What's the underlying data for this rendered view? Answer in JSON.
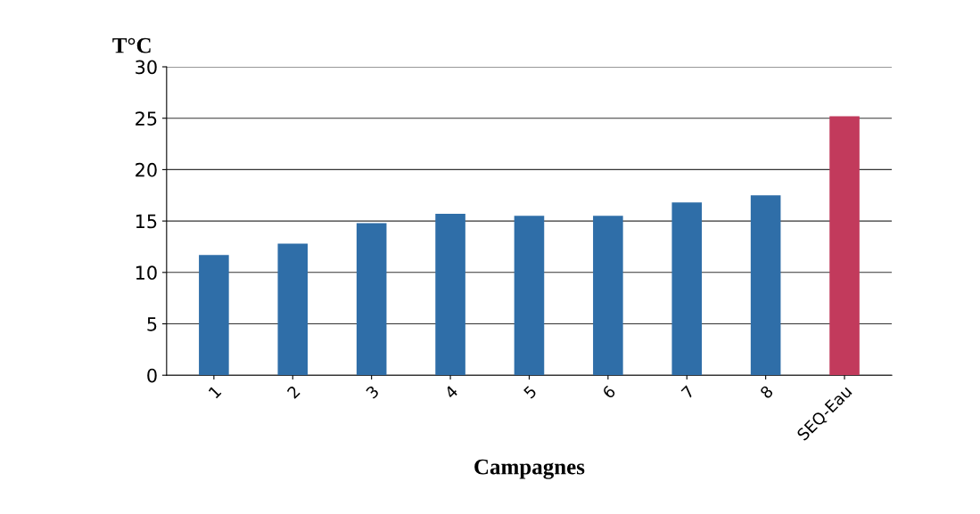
{
  "chart_data": {
    "type": "bar",
    "categories": [
      "1",
      "2",
      "3",
      "4",
      "5",
      "6",
      "7",
      "8",
      "SEQ-Eau"
    ],
    "values": [
      11.7,
      12.8,
      14.8,
      15.7,
      15.5,
      15.5,
      16.8,
      17.5,
      25.2
    ],
    "colors": [
      "#2f6ea8",
      "#2f6ea8",
      "#2f6ea8",
      "#2f6ea8",
      "#2f6ea8",
      "#2f6ea8",
      "#2f6ea8",
      "#2f6ea8",
      "#c23a5c"
    ],
    "ylabel": "T°C",
    "xlabel": "Campagnes",
    "ylim": [
      0,
      30
    ],
    "yticks": [
      0,
      5,
      10,
      15,
      20,
      25,
      30
    ],
    "grid": "y",
    "legend": false
  }
}
